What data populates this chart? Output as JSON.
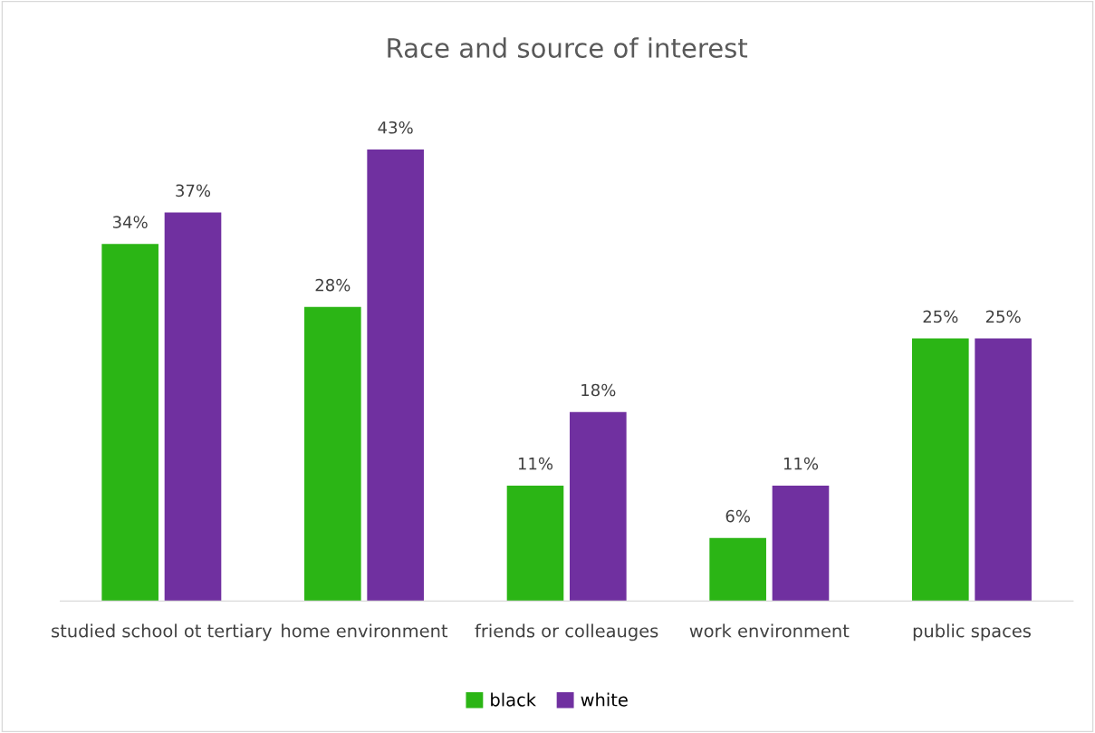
{
  "chart_data": {
    "type": "bar",
    "title": "Race and source of interest",
    "categories": [
      "studied school ot tertiary",
      "home environment",
      "friends or colleauges",
      "work environment",
      "public spaces"
    ],
    "series": [
      {
        "name": "black",
        "color": "#2bb515",
        "values": [
          34,
          28,
          11,
          6,
          25
        ],
        "value_labels": [
          "34%",
          "28%",
          "11%",
          "6%",
          "25%"
        ]
      },
      {
        "name": "white",
        "color": "#7030a0",
        "values": [
          37,
          43,
          18,
          11,
          25
        ],
        "value_labels": [
          "37%",
          "43%",
          "18%",
          "11%",
          "25%"
        ]
      }
    ],
    "legend": "bottom"
  }
}
